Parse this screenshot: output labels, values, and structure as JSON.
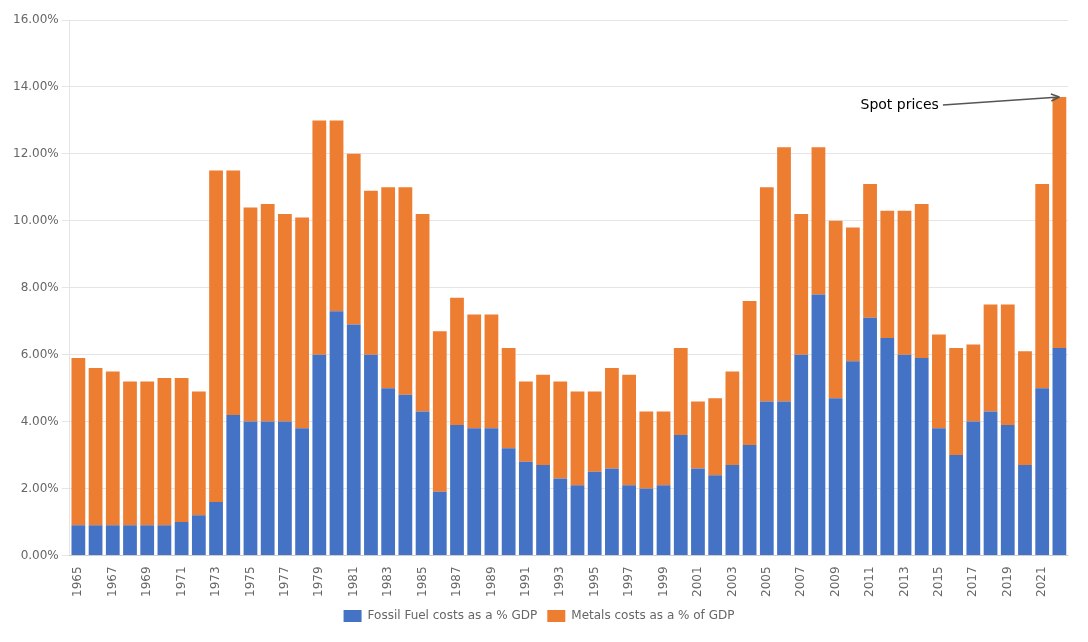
{
  "chart_data": {
    "type": "bar",
    "stacked": true,
    "grid": true,
    "legend": "bottom",
    "categories": [
      "1965",
      null,
      "1967",
      null,
      "1969",
      null,
      "1971",
      null,
      "1973",
      null,
      "1975",
      null,
      "1977",
      null,
      "1979",
      null,
      "1981",
      null,
      "1983",
      null,
      "1985",
      null,
      "1987",
      null,
      "1989",
      null,
      "1991",
      null,
      "1993",
      null,
      "1995",
      null,
      "1997",
      null,
      "1999",
      null,
      "2001",
      null,
      "2003",
      null,
      "2005",
      null,
      "2007",
      null,
      "2009",
      null,
      "2011",
      null,
      "2013",
      null,
      "2015",
      null,
      "2017",
      null,
      "2019",
      null,
      "2021",
      null
    ],
    "series": [
      {
        "name": "Fossil Fuel costs as a % GDP",
        "color": "#4472C4",
        "values": [
          0.009,
          0.009,
          0.009,
          0.009,
          0.009,
          0.009,
          0.01,
          0.012,
          0.016,
          0.042,
          0.04,
          0.04,
          0.04,
          0.038,
          0.06,
          0.073,
          0.069,
          0.06,
          0.05,
          0.048,
          0.043,
          0.019,
          0.039,
          0.038,
          0.038,
          0.032,
          0.028,
          0.027,
          0.023,
          0.021,
          0.025,
          0.026,
          0.021,
          0.02,
          0.021,
          0.036,
          0.026,
          0.024,
          0.027,
          0.033,
          0.046,
          0.046,
          0.06,
          0.078,
          0.047,
          0.058,
          0.071,
          0.065,
          0.06,
          0.059,
          0.038,
          0.03,
          0.04,
          0.043,
          0.039,
          0.027,
          0.05,
          0.062
        ]
      },
      {
        "name": "Metals costs as a % of GDP",
        "color": "#ED7D31",
        "values": [
          0.05,
          0.047,
          0.046,
          0.043,
          0.043,
          0.044,
          0.043,
          0.037,
          0.099,
          0.073,
          0.064,
          0.065,
          0.062,
          0.063,
          0.07,
          0.057,
          0.051,
          0.049,
          0.06,
          0.062,
          0.059,
          0.048,
          0.038,
          0.034,
          0.034,
          0.03,
          0.024,
          0.027,
          0.029,
          0.028,
          0.024,
          0.03,
          0.033,
          0.023,
          0.022,
          0.026,
          0.02,
          0.023,
          0.028,
          0.043,
          0.064,
          0.076,
          0.042,
          0.044,
          0.053,
          0.04,
          0.04,
          0.038,
          0.043,
          0.046,
          0.028,
          0.032,
          0.023,
          0.032,
          0.036,
          0.034,
          0.061,
          0.075
        ]
      }
    ],
    "ylim": [
      0,
      0.16
    ],
    "yticks": [
      {
        "value": 0,
        "label": "0.00%"
      },
      {
        "value": 0.02,
        "label": "2.00%"
      },
      {
        "value": 0.04,
        "label": "4.00%"
      },
      {
        "value": 0.06,
        "label": "6.00%"
      },
      {
        "value": 0.08,
        "label": "8.00%"
      },
      {
        "value": 0.1,
        "label": "10.00%"
      },
      {
        "value": 0.12,
        "label": "12.00%"
      },
      {
        "value": 0.14,
        "label": "14.00%"
      },
      {
        "value": 0.16,
        "label": "16.00%"
      }
    ],
    "annotations": [
      {
        "text": "Spot prices"
      }
    ]
  }
}
